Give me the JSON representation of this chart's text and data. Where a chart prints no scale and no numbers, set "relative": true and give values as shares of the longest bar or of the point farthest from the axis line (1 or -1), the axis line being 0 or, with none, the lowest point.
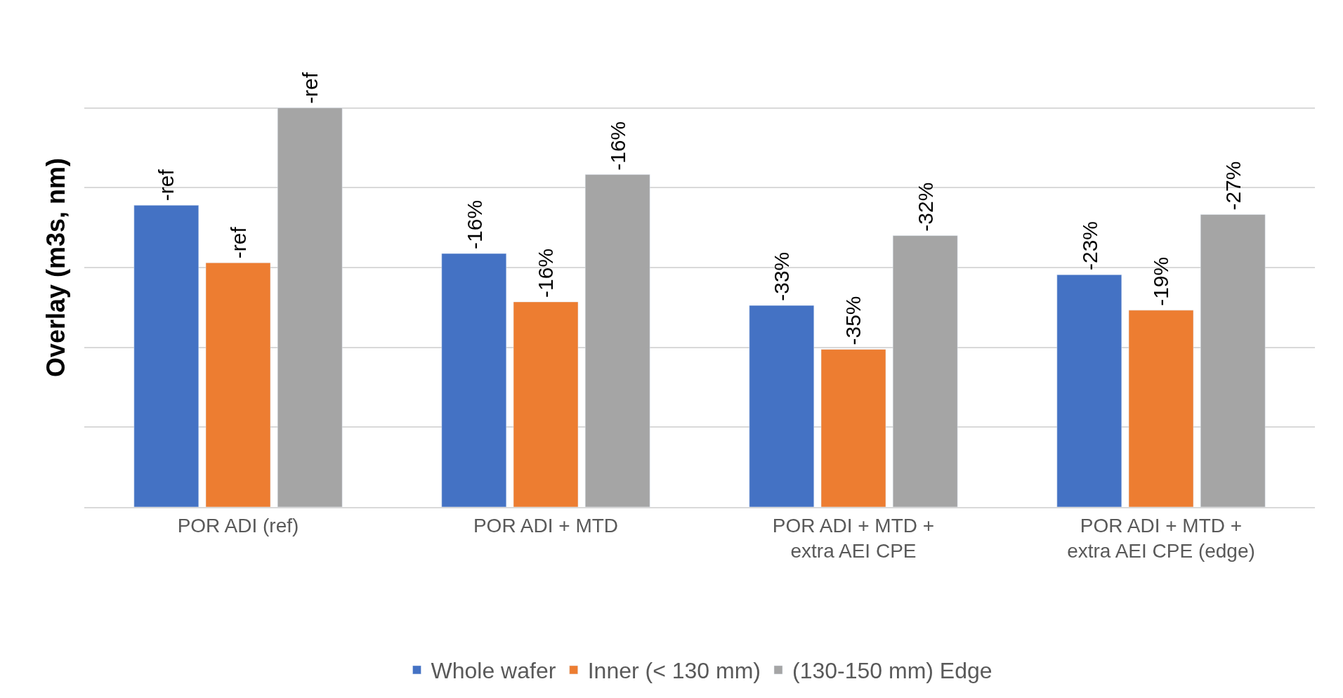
{
  "chart_data": {
    "type": "bar",
    "relative": true,
    "ylabel": "Overlay (m3s, nm)",
    "categories": [
      "POR ADI (ref)",
      "POR ADI + MTD",
      "POR ADI + MTD +\nextra AEI CPE",
      "POR ADI + MTD +\nextra AEI CPE (edge)"
    ],
    "series": [
      {
        "name": "Whole wafer",
        "color": "#4472c4",
        "values": [
          0.756,
          0.635,
          0.505,
          0.582
        ]
      },
      {
        "name": "Inner (< 130 mm)",
        "color": "#ed7d31",
        "values": [
          0.612,
          0.514,
          0.395,
          0.493
        ]
      },
      {
        "name": "(130-150 mm) Edge",
        "color": "#a5a5a5",
        "values": [
          1,
          0.833,
          0.68,
          0.733
        ]
      }
    ],
    "annotations": [
      "-ref",
      "-ref",
      "-ref",
      "-16%",
      "-16%",
      "-16%",
      "-33%",
      "-35%",
      "-32%",
      "-23%",
      "-19%",
      "-27%"
    ],
    "grid": "y",
    "legend": "bottom"
  }
}
